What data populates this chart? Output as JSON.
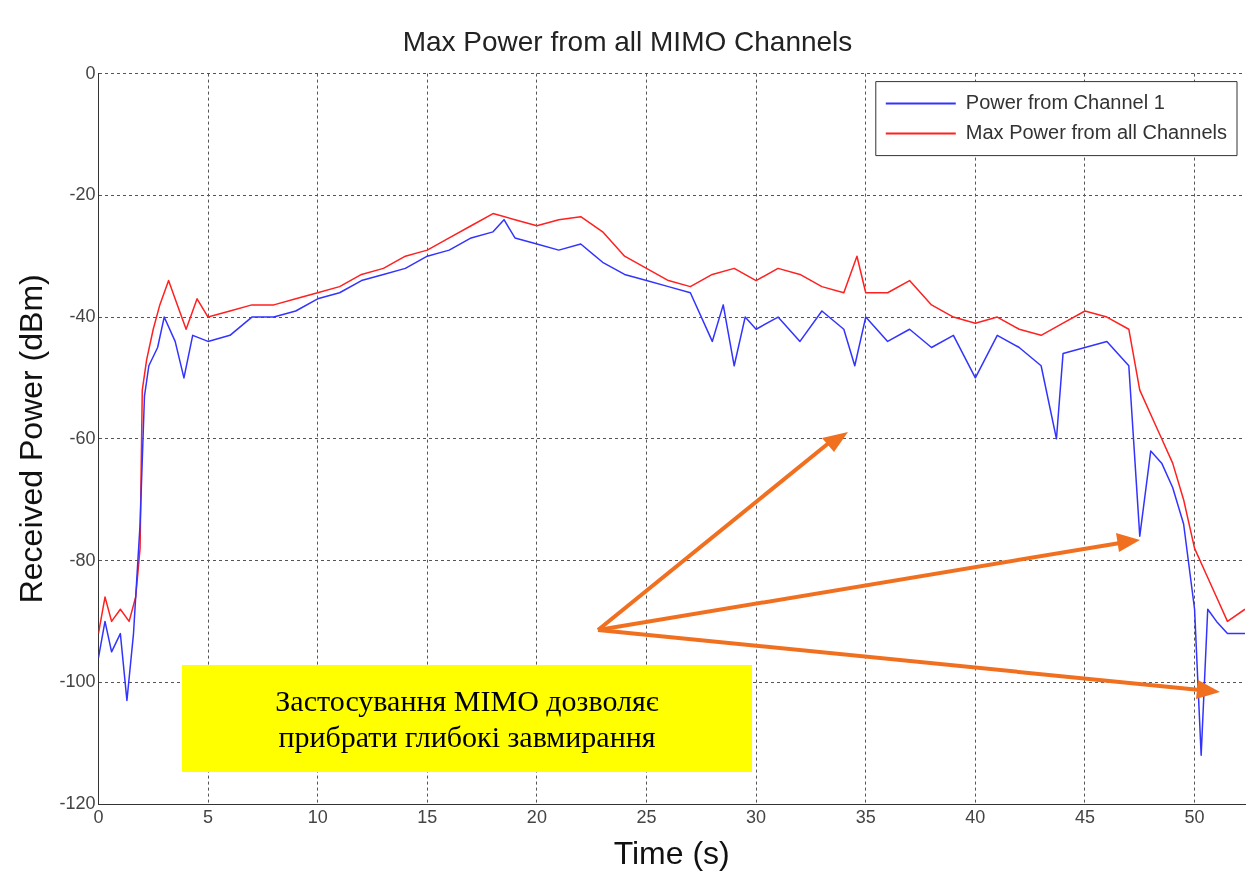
{
  "chart_data": {
    "type": "line",
    "title": "Max Power from all MIMO Channels",
    "xlabel": "Time (s)",
    "ylabel": "Received Power (dBm)",
    "xlim": [
      0,
      52.3
    ],
    "xticks": [
      0,
      5,
      10,
      15,
      20,
      25,
      30,
      35,
      40,
      45,
      50
    ],
    "ylim": [
      -120,
      0
    ],
    "yticks": [
      -120,
      -100,
      -80,
      -60,
      -40,
      -20,
      0
    ],
    "grid": true,
    "legend": "top right",
    "marker": "none",
    "line_style": "solid",
    "annotations": [
      "Застосування MIMO дозволяє прибрати глибокі завмирання"
    ],
    "series": [
      {
        "name": "Power from Channel 1",
        "color": "#3333ff",
        "x": [
          0,
          0.3,
          0.6,
          1,
          1.3,
          1.6,
          1.9,
          2.1,
          2.3,
          2.7,
          3,
          3.5,
          3.9,
          4.3,
          5,
          6,
          7,
          8,
          9,
          10,
          11,
          12,
          13,
          14,
          15,
          16,
          17,
          18,
          18.5,
          19,
          20,
          21,
          22,
          23,
          24,
          25,
          26,
          27,
          28,
          28.5,
          29,
          29.5,
          30,
          31,
          32,
          33,
          34,
          34.5,
          35,
          36,
          37,
          38,
          39,
          40,
          41,
          42,
          43,
          43.7,
          44,
          45,
          46,
          47,
          47.5,
          48,
          48.5,
          49,
          49.5,
          50,
          50.3,
          50.6,
          51,
          51.5,
          52.3
        ],
        "values": [
          -96,
          -90,
          -95,
          -92,
          -103,
          -92,
          -74,
          -53,
          -48,
          -45,
          -40,
          -44,
          -50,
          -43,
          -44,
          -43,
          -40,
          -40,
          -39,
          -37,
          -36,
          -34,
          -33,
          -32,
          -30,
          -29,
          -27,
          -26,
          -24,
          -27,
          -28,
          -29,
          -28,
          -31,
          -33,
          -34,
          -35,
          -36,
          -44,
          -38,
          -48,
          -40,
          -42,
          -40,
          -44,
          -39,
          -42,
          -48,
          -40,
          -44,
          -42,
          -45,
          -43,
          -50,
          -43,
          -45,
          -48,
          -60,
          -46,
          -45,
          -44,
          -48,
          -76,
          -62,
          -64,
          -68,
          -74,
          -88,
          -112,
          -88,
          -90,
          -92,
          -92
        ]
      },
      {
        "name": "Max Power from all Channels",
        "color": "#ff2020",
        "x": [
          0,
          0.3,
          0.6,
          1,
          1.4,
          1.7,
          1.9,
          2,
          2.2,
          2.5,
          2.8,
          3.2,
          3.6,
          4,
          4.5,
          5,
          6,
          7,
          8,
          9,
          10,
          11,
          12,
          13,
          14,
          15,
          16,
          17,
          18,
          19,
          20,
          21,
          22,
          23,
          24,
          25,
          26,
          27,
          28,
          29,
          30,
          31,
          32,
          33,
          34,
          34.6,
          35,
          36,
          37,
          38,
          39,
          40,
          41,
          42,
          43,
          44,
          45,
          46,
          47,
          47.5,
          48,
          48.5,
          49,
          49.5,
          50,
          50.5,
          51,
          51.5,
          52.3
        ],
        "values": [
          -92,
          -86,
          -90,
          -88,
          -90,
          -86,
          -78,
          -52,
          -47,
          -42,
          -38,
          -34,
          -38,
          -42,
          -37,
          -40,
          -39,
          -38,
          -38,
          -37,
          -36,
          -35,
          -33,
          -32,
          -30,
          -29,
          -27,
          -25,
          -23,
          -24,
          -25,
          -24,
          -23.5,
          -26,
          -30,
          -32,
          -34,
          -35,
          -33,
          -32,
          -34,
          -32,
          -33,
          -35,
          -36,
          -30,
          -36,
          -36,
          -34,
          -38,
          -40,
          -41,
          -40,
          -42,
          -43,
          -41,
          -39,
          -40,
          -42,
          -52,
          -56,
          -60,
          -64,
          -70,
          -78,
          -82,
          -86,
          -90,
          -88
        ]
      }
    ]
  }
}
